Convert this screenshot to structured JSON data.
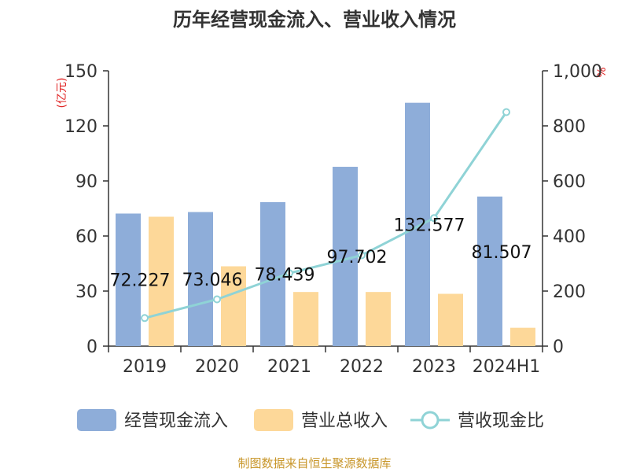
{
  "chart_data": {
    "type": "bar",
    "title": "历年经营现金流入、营业收入情况",
    "categories": [
      "2019",
      "2020",
      "2021",
      "2022",
      "2023",
      "2024H1"
    ],
    "series": [
      {
        "name": "经营现金流入",
        "kind": "bar",
        "axis": "left",
        "color": "#8eadd9",
        "values": [
          72.227,
          73.046,
          78.439,
          97.702,
          132.577,
          81.507
        ],
        "labels": [
          "72.227",
          "73.046",
          "78.439",
          "97.702",
          "132.577",
          "81.507"
        ]
      },
      {
        "name": "营业总收入",
        "kind": "bar",
        "axis": "left",
        "color": "#fdd899",
        "values": [
          70.5,
          43.5,
          29.5,
          29.5,
          28.5,
          10.0
        ]
      },
      {
        "name": "营收现金比",
        "kind": "line",
        "axis": "right",
        "color": "#8fd3d6",
        "values": [
          102,
          170,
          265,
          330,
          465,
          850
        ]
      }
    ],
    "y_left": {
      "unit": "(亿元)",
      "min": 0,
      "max": 150,
      "ticks": [
        0,
        30,
        60,
        90,
        120,
        150
      ],
      "tick_labels": [
        "0",
        "30",
        "60",
        "90",
        "120",
        "150"
      ]
    },
    "y_right": {
      "unit": "%",
      "min": 0,
      "max": 1000,
      "ticks": [
        0,
        200,
        400,
        600,
        800,
        1000
      ],
      "tick_labels": [
        "0",
        "200",
        "400",
        "600",
        "800",
        "1,000"
      ]
    },
    "grid": false,
    "legend_position": "bottom"
  },
  "source_note": "制图数据来自恒生聚源数据库"
}
